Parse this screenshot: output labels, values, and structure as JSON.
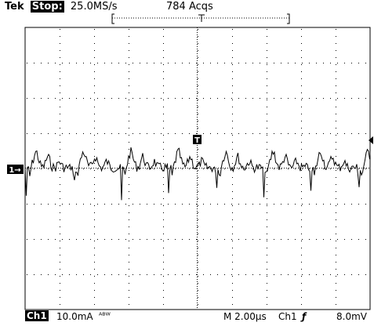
{
  "header": {
    "brand": "Tek",
    "mode": "Stop:",
    "sample_rate": "25.0MS/s",
    "acquisitions": "784 Acqs"
  },
  "markers": {
    "ch1_ground": "1→",
    "trigger": "T"
  },
  "footer": {
    "channel_tag": "Ch1",
    "ch1_scale": "10.0mA",
    "bw_icon_text": "ᴬᴮᵂ",
    "timebase": "M 2.00µs",
    "trigger_source": "Ch1",
    "trigger_slope": "ƒ",
    "trigger_level": "8.0mV"
  },
  "colors": {
    "trace": "#000000",
    "grid": "#000000",
    "background": "#ffffff"
  }
}
